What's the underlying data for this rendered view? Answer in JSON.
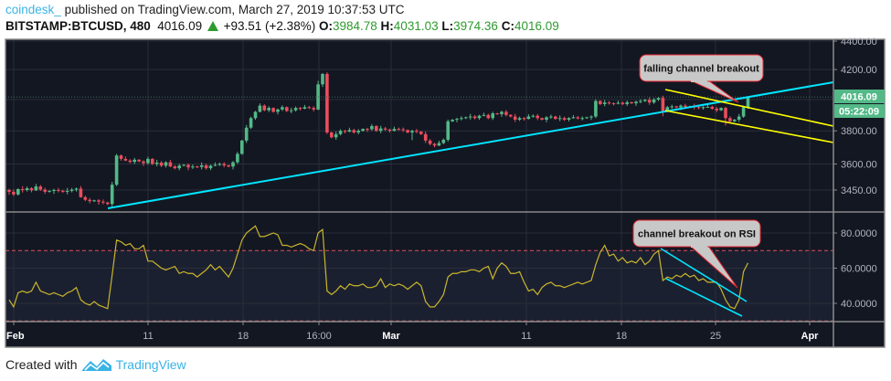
{
  "header": {
    "publisher": "coindesk_",
    "published_text": "published on TradingView.com, March 27, 2019 10:37:53 UTC",
    "symbol": "BITSTAMP:BTCUSD, 480",
    "last": "4016.09",
    "change": "+93.51 (+2.38%)",
    "o_label": "O:",
    "o": "3984.78",
    "h_label": "H:",
    "h": "4031.03",
    "l_label": "L:",
    "l": "3974.36",
    "c_label": "C:",
    "c": "4016.09"
  },
  "footer": {
    "created_with": "Created with",
    "brand": "TradingView"
  },
  "colors": {
    "background": "#131722",
    "up": "#53b987",
    "down": "#eb4d5c",
    "trendline": "#00e5ff",
    "channel": "#ffff00",
    "rsi": "#c9b62c",
    "rsi_band": "#e04f5f",
    "price_label": "#53b987"
  },
  "chart_data": [
    {
      "type": "candlestick",
      "interval_minutes": 480,
      "scale": "log",
      "ylim": [
        3300,
        4480
      ],
      "y_ticks": [
        "4400.00",
        "4200.00",
        "3800.00",
        "3600.00",
        "3450.00"
      ],
      "x_ticks": [
        "Feb",
        "11",
        "18",
        "16:00",
        "Mar",
        "11",
        "18",
        "25",
        "Apr"
      ],
      "grid": true,
      "current_price_label": "4016.09",
      "countdown_label": "05:22:09",
      "close": [
        3440,
        3425,
        3455,
        3450,
        3460,
        3448,
        3470,
        3452,
        3440,
        3445,
        3450,
        3446,
        3440,
        3445,
        3452,
        3458,
        3410,
        3395,
        3388,
        3392,
        3385,
        3380,
        3372,
        3480,
        3650,
        3630,
        3620,
        3612,
        3625,
        3615,
        3605,
        3630,
        3600,
        3608,
        3590,
        3610,
        3585,
        3575,
        3590,
        3595,
        3580,
        3585,
        3582,
        3592,
        3575,
        3590,
        3595,
        3600,
        3592,
        3585,
        3610,
        3660,
        3740,
        3820,
        3880,
        3920,
        3960,
        3930,
        3945,
        3920,
        3935,
        3950,
        3925,
        3930,
        3945,
        3940,
        3950,
        3945,
        3935,
        4100,
        4170,
        3790,
        3760,
        3780,
        3800,
        3795,
        3805,
        3790,
        3800,
        3812,
        3810,
        3830,
        3800,
        3815,
        3808,
        3800,
        3812,
        3810,
        3805,
        3790,
        3800,
        3795,
        3780,
        3740,
        3720,
        3710,
        3725,
        3745,
        3860,
        3870,
        3875,
        3880,
        3885,
        3890,
        3880,
        3895,
        3900,
        3880,
        3910,
        3905,
        3920,
        3900,
        3890,
        3870,
        3880,
        3875,
        3890,
        3895,
        3880,
        3870,
        3885,
        3890,
        3875,
        3880,
        3870,
        3880,
        3885,
        3878,
        3880,
        3885,
        3890,
        3990,
        3970,
        3980,
        3975,
        3972,
        3978,
        3970,
        3982,
        3975,
        3985,
        3990,
        3998,
        3980,
        4000,
        4010,
        3925,
        3950,
        3955,
        3948,
        3960,
        3952,
        3955,
        3950,
        3945,
        3950,
        3952,
        3940,
        3930,
        3945,
        3880,
        3860,
        3870,
        3890,
        3950,
        4016.09
      ],
      "trendlines": [
        {
          "kind": "ascending support",
          "color": "cyan"
        },
        {
          "kind": "falling channel upper",
          "color": "yellow"
        },
        {
          "kind": "falling channel lower",
          "color": "yellow"
        }
      ],
      "annotation": "falling channel breakout"
    },
    {
      "type": "line",
      "indicator": "RSI",
      "ylim": [
        28,
        88
      ],
      "y_ticks": [
        "80.0000",
        "60.0000",
        "40.0000"
      ],
      "bands": [
        70,
        30
      ],
      "values": [
        42,
        38,
        46,
        47,
        46,
        47,
        52,
        47,
        46,
        45,
        46,
        45,
        44,
        46,
        47,
        49,
        42,
        40,
        39,
        41,
        39,
        38,
        37,
        56,
        76,
        75,
        73,
        74,
        71,
        71,
        73,
        64,
        64,
        62,
        60,
        59,
        60,
        61,
        57,
        58,
        57,
        57,
        55,
        57,
        59,
        62,
        59,
        61,
        58,
        55,
        60,
        68,
        76,
        80,
        82,
        84,
        78,
        78,
        79,
        80,
        79,
        73,
        73,
        72,
        73,
        74,
        73,
        71,
        70,
        80,
        82,
        47,
        45,
        47,
        50,
        48,
        51,
        50,
        50,
        51,
        49,
        49,
        50,
        54,
        49,
        51,
        50,
        51,
        50,
        48,
        50,
        52,
        50,
        41,
        38,
        38,
        41,
        45,
        55,
        57,
        57,
        58,
        58,
        59,
        59,
        58,
        60,
        61,
        54,
        60,
        63,
        61,
        57,
        57,
        58,
        52,
        47,
        48,
        45,
        49,
        51,
        52,
        50,
        50,
        49,
        50,
        51,
        52,
        51,
        52,
        53,
        62,
        69,
        73,
        67,
        68,
        64,
        66,
        63,
        64,
        63,
        66,
        62,
        64,
        68,
        70,
        53,
        55,
        54,
        56,
        55,
        57,
        55,
        56,
        53,
        54,
        52,
        52,
        52,
        48,
        42,
        38,
        37,
        42,
        58,
        63
      ],
      "annotation": "channel breakout on RSI"
    }
  ]
}
